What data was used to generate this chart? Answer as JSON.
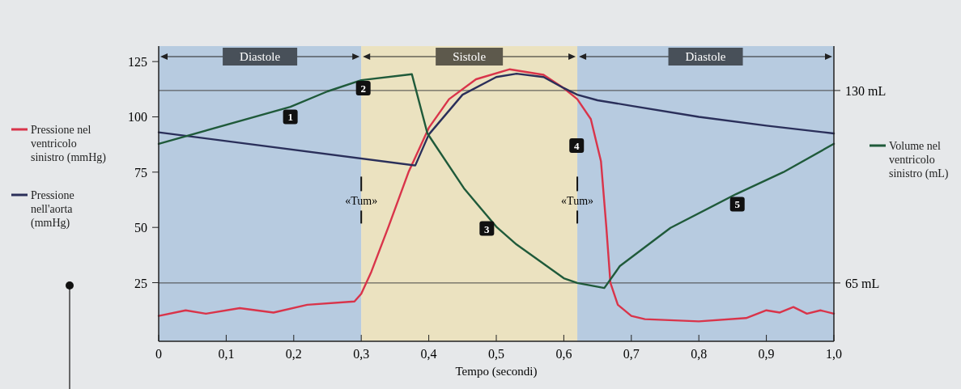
{
  "chart_data": {
    "type": "line",
    "xlabel": "Tempo (secondi)",
    "xlim": [
      0,
      1
    ],
    "xticks": [
      0,
      {
        "value": 0.1,
        "label": "0,1"
      },
      {
        "value": 0.2,
        "label": "0,2"
      },
      {
        "value": 0.3,
        "label": "0,3"
      },
      {
        "value": 0.4,
        "label": "0,4"
      },
      {
        "value": 0.5,
        "label": "0,5"
      },
      {
        "value": 0.6,
        "label": "0,6"
      },
      {
        "value": 0.7,
        "label": "0,7"
      },
      {
        "value": 0.8,
        "label": "0,8"
      },
      {
        "value": 0.9,
        "label": "0,9"
      },
      {
        "value": 1,
        "label": "1,0"
      }
    ],
    "ylim": [
      -1.5,
      132
    ],
    "yticks": [
      25,
      50,
      75,
      100,
      125
    ],
    "y2lim": [
      45.3,
      145
    ],
    "y2ticks": [
      {
        "value": 130,
        "label": "130 mL"
      },
      {
        "value": 65,
        "label": "65 mL"
      }
    ],
    "legend": "left",
    "grid": false,
    "marker": "none",
    "line_style": "solid",
    "series": [
      {
        "name": "Pressione nel ventricolo sinistro (mmHg)",
        "color": "#d9344a",
        "x": [
          0,
          0.04,
          0.07,
          0.12,
          0.17,
          0.22,
          0.29,
          0.3,
          0.315,
          0.34,
          0.37,
          0.4,
          0.43,
          0.47,
          0.52,
          0.57,
          0.6,
          0.62,
          0.64,
          0.655,
          0.663,
          0.669,
          0.68,
          0.7,
          0.72,
          0.8,
          0.87,
          0.9,
          0.92,
          0.94,
          0.96,
          0.98,
          1
        ],
        "values": [
          10,
          12.5,
          11,
          13.5,
          11.5,
          15,
          16.5,
          20,
          30,
          50,
          75,
          95,
          108,
          117,
          121.5,
          119,
          113,
          108,
          99,
          80,
          50,
          25,
          15,
          10,
          8.5,
          7.5,
          9,
          12.5,
          11.5,
          14,
          11,
          12.5,
          11
        ]
      },
      {
        "name": "Pressione nell'aorta (mmHg)",
        "color": "#2a2f5a",
        "x": [
          0,
          0.38,
          0.4,
          0.45,
          0.5,
          0.53,
          0.57,
          0.6,
          0.62,
          0.65,
          0.7,
          0.8,
          0.9,
          1
        ],
        "values": [
          93,
          78,
          92,
          110,
          118,
          119.5,
          118,
          113,
          110,
          107.5,
          105,
          100,
          96,
          92.5
        ]
      },
      {
        "name": "Volume nel ventricolo sinistro (mL)",
        "color": "#1f5a3a",
        "axis": "y2",
        "x": [
          0,
          0.195,
          0.25,
          0.3,
          0.375,
          0.398,
          0.453,
          0.5,
          0.53,
          0.6,
          0.62,
          0.66,
          0.683,
          0.758,
          0.855,
          0.925,
          1
        ],
        "values": [
          112,
          124.5,
          129.7,
          133.5,
          135.5,
          115.5,
          96.7,
          84,
          78,
          66.6,
          65,
          63.3,
          70.7,
          83.6,
          95,
          102.4,
          112
        ]
      }
    ],
    "ref_lines": [
      {
        "axis": "y2",
        "value": 130
      },
      {
        "axis": "y2",
        "value": 65
      }
    ],
    "bands": [
      {
        "axis": "x",
        "from": 0,
        "to": 0.3,
        "label": "Diastole",
        "color": "#b7cbe0"
      },
      {
        "axis": "x",
        "from": 0.3,
        "to": 0.62,
        "label": "Sistole",
        "color": "#ebe2c0"
      },
      {
        "axis": "x",
        "from": 0.62,
        "to": 1,
        "label": "Diastole",
        "color": "#b7cbe0"
      }
    ],
    "annotations": [
      {
        "text": "«Tum»",
        "x": 0.3,
        "y": 62
      },
      {
        "text": "«Tum»",
        "x": 0.62,
        "y": 62
      },
      {
        "text": "1",
        "x": 0.195,
        "y": 100
      },
      {
        "text": "2",
        "x": 0.303,
        "y": 113
      },
      {
        "text": "3",
        "x": 0.486,
        "y": 49.5
      },
      {
        "text": "4",
        "x": 0.619,
        "y": 87
      },
      {
        "text": "5",
        "x": 0.857,
        "y": 60.5
      }
    ]
  }
}
